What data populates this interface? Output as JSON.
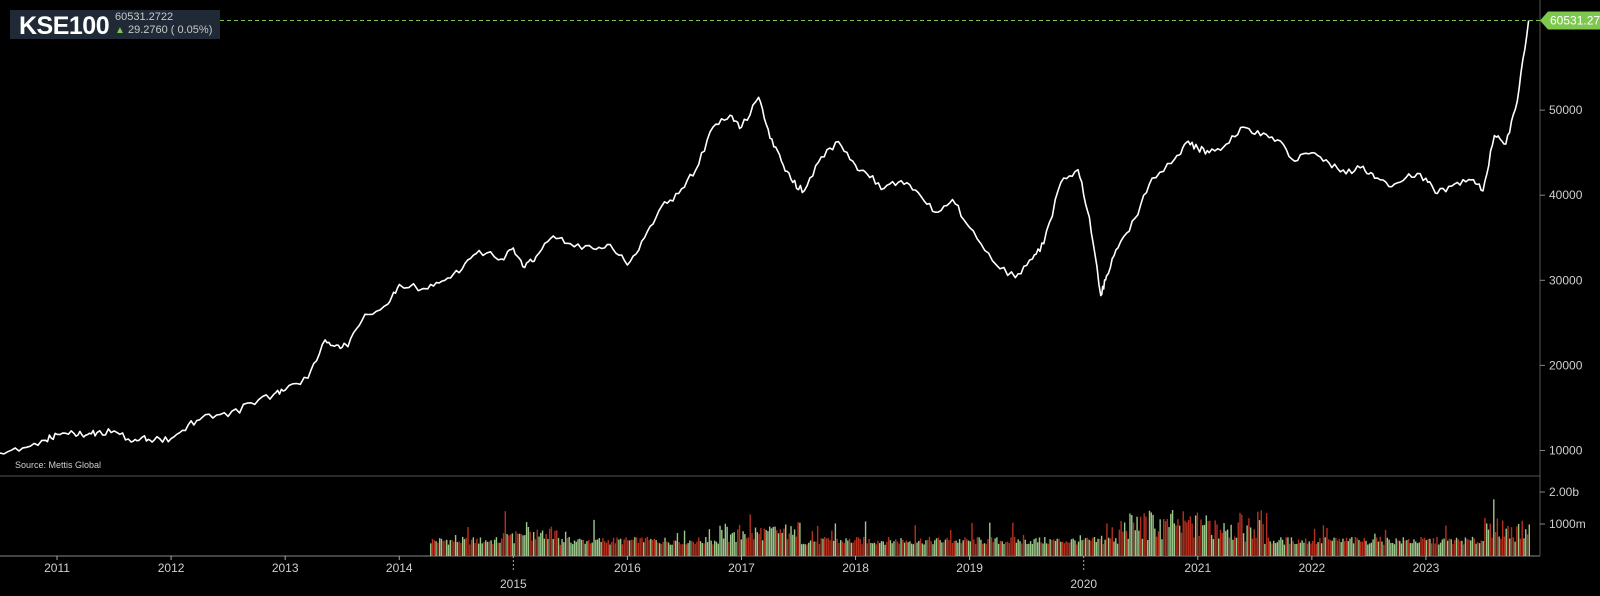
{
  "ticker": {
    "symbol": "KSE100",
    "price": "60531.2722",
    "change": "29.2760 ( 0.05%)",
    "up_arrow_icon": "arrow-up-icon"
  },
  "source": "Source: Mettis Global",
  "last_value_label": "60531.2722",
  "colors": {
    "background": "#000000",
    "line": "#ffffff",
    "volume_up": "#9cc78a",
    "volume_down": "#b5301f",
    "last_price_badge": "#7ec850",
    "ticker_box": "#1f2a36"
  },
  "chart_data": {
    "type": "line",
    "title": "KSE100",
    "price_axis": {
      "ticks": [
        10000,
        20000,
        30000,
        40000,
        50000
      ],
      "tick_labels": [
        "10000",
        "20000",
        "30000",
        "40000",
        "50000"
      ],
      "range": [
        7000,
        62000
      ]
    },
    "volume_axis": {
      "tick_values": [
        1.0,
        2.0
      ],
      "tick_labels": [
        "1000m",
        "2.00b"
      ],
      "range": [
        0,
        2.5
      ]
    },
    "x_axis": {
      "range": [
        2010.5,
        2024.0
      ],
      "year_labels": [
        "2011",
        "2012",
        "2013",
        "2014",
        "2015",
        "2016",
        "2017",
        "2018",
        "2019",
        "2020",
        "2021",
        "2022",
        "2023"
      ],
      "year_ticks": [
        2011,
        2012,
        2013,
        2014,
        2015,
        2016,
        2017,
        2018,
        2019,
        2020,
        2021,
        2022,
        2023
      ],
      "year_label_rows": [
        1,
        1,
        1,
        1,
        2,
        1,
        1,
        1,
        1,
        2,
        1,
        1,
        1
      ]
    },
    "last_value": 60531.2722,
    "series": [
      {
        "type": "line",
        "x": [
          2010.5,
          2010.7,
          2010.9,
          2011.0,
          2011.15,
          2011.25,
          2011.35,
          2011.5,
          2011.65,
          2011.75,
          2011.85,
          2012.0,
          2012.15,
          2012.3,
          2012.5,
          2012.7,
          2012.9,
          2013.0,
          2013.2,
          2013.35,
          2013.45,
          2013.55,
          2013.7,
          2013.9,
          2014.0,
          2014.25,
          2014.4,
          2014.55,
          2014.7,
          2014.9,
          2015.0,
          2015.1,
          2015.2,
          2015.35,
          2015.5,
          2015.7,
          2015.85,
          2016.0,
          2016.15,
          2016.3,
          2016.45,
          2016.6,
          2016.75,
          2016.9,
          2017.0,
          2017.15,
          2017.25,
          2017.35,
          2017.45,
          2017.55,
          2017.7,
          2017.85,
          2018.0,
          2018.1,
          2018.25,
          2018.4,
          2018.55,
          2018.7,
          2018.85,
          2019.0,
          2019.2,
          2019.4,
          2019.55,
          2019.65,
          2019.8,
          2019.95,
          2020.05,
          2020.15,
          2020.2,
          2020.3,
          2020.45,
          2020.6,
          2020.8,
          2020.9,
          2021.0,
          2021.1,
          2021.25,
          2021.4,
          2021.55,
          2021.7,
          2021.85,
          2022.0,
          2022.15,
          2022.3,
          2022.45,
          2022.55,
          2022.7,
          2022.85,
          2023.0,
          2023.1,
          2023.25,
          2023.4,
          2023.5,
          2023.6,
          2023.7,
          2023.8,
          2023.9
        ],
        "y": [
          9700,
          10300,
          11200,
          11900,
          12000,
          11800,
          12100,
          12300,
          11000,
          11600,
          11200,
          11400,
          13000,
          14200,
          14000,
          15600,
          16600,
          17100,
          18500,
          23000,
          22400,
          22200,
          26000,
          27200,
          29500,
          29000,
          30000,
          31300,
          33500,
          32500,
          33800,
          31500,
          32800,
          35200,
          34300,
          33700,
          34200,
          31800,
          35000,
          38700,
          40200,
          43000,
          48000,
          49400,
          48000,
          51500,
          46700,
          44000,
          41500,
          40500,
          44500,
          46300,
          43500,
          42500,
          40800,
          41700,
          40300,
          38000,
          39500,
          36200,
          32300,
          30300,
          32500,
          34300,
          41500,
          43000,
          37400,
          28200,
          30500,
          33800,
          37300,
          42000,
          44300,
          46200,
          45500,
          45000,
          46000,
          48000,
          47000,
          46500,
          44000,
          45000,
          43800,
          42500,
          43400,
          42000,
          41000,
          42500,
          42000,
          40200,
          41300,
          41800,
          40500,
          47000,
          46000,
          51000,
          60531
        ]
      }
    ]
  }
}
